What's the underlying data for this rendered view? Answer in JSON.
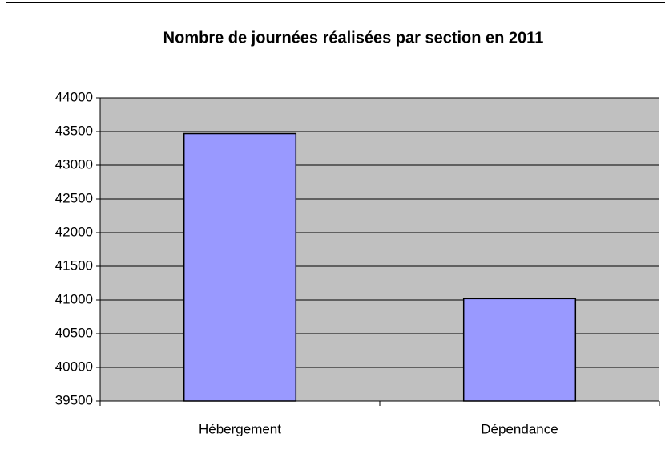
{
  "chart_data": {
    "type": "bar",
    "title": "Nombre de journées réalisées par section en 2011",
    "categories": [
      "Hébergement",
      "Dépendance"
    ],
    "values": [
      43470,
      41020
    ],
    "color": "#9999ff",
    "ylim": [
      39500,
      44000
    ],
    "yticks": [
      39500,
      40000,
      40500,
      41000,
      41500,
      42000,
      42500,
      43000,
      43500,
      44000
    ],
    "grid": true
  }
}
